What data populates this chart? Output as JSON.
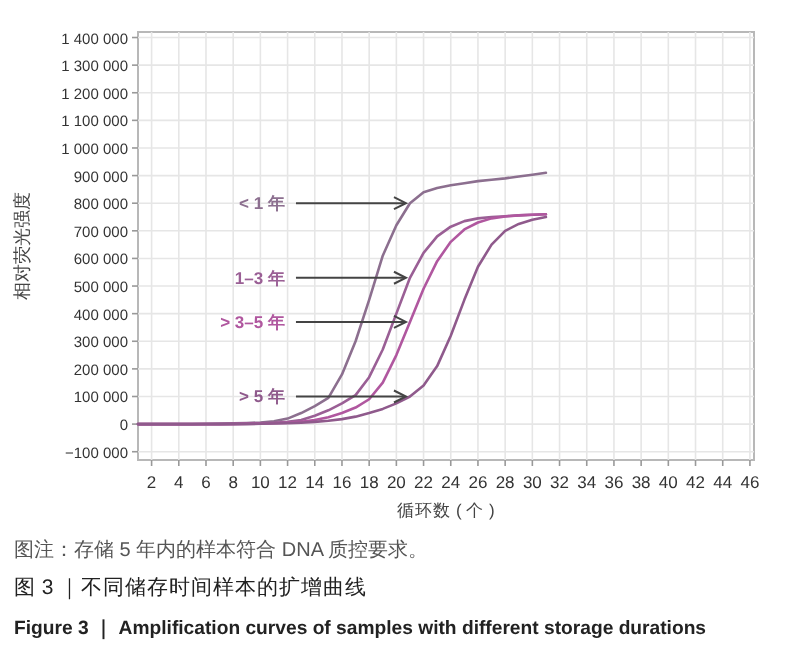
{
  "chart_data": {
    "type": "line",
    "title": "图 3 ｜不同储存时间样本的扩增曲线",
    "subtitle": "Figure 3 ｜ Amplification curves of samples with different storage durations",
    "xlabel": "循环数 ( 个 )",
    "ylabel": "相对荧光强度",
    "x": [
      1,
      2,
      3,
      4,
      5,
      6,
      7,
      8,
      9,
      10,
      11,
      12,
      13,
      14,
      15,
      16,
      17,
      18,
      19,
      20,
      21,
      22,
      23,
      24,
      25,
      26,
      27,
      28,
      29,
      30,
      31
    ],
    "series": [
      {
        "name": "< 1 年",
        "color": "#8c6f8f",
        "values": [
          0,
          0,
          0,
          0,
          0,
          1000,
          2000,
          3000,
          4000,
          6000,
          10000,
          20000,
          40000,
          65000,
          95000,
          180000,
          300000,
          450000,
          610000,
          720000,
          800000,
          840000,
          855000,
          865000,
          872000,
          880000,
          885000,
          890000,
          897000,
          903000,
          910000
        ]
      },
      {
        "name": "1–3 年",
        "color": "#9a5f95",
        "values": [
          0,
          0,
          0,
          0,
          0,
          0,
          0,
          1000,
          2000,
          3000,
          5000,
          8000,
          15000,
          30000,
          50000,
          75000,
          105000,
          170000,
          270000,
          400000,
          530000,
          620000,
          680000,
          715000,
          735000,
          745000,
          750000,
          753000,
          756000,
          758000,
          760000
        ]
      },
      {
        "name": "> 3–5 年",
        "color": "#b0579f",
        "values": [
          0,
          0,
          0,
          0,
          0,
          0,
          0,
          0,
          1000,
          2000,
          3000,
          5000,
          8000,
          15000,
          25000,
          40000,
          60000,
          90000,
          150000,
          250000,
          370000,
          490000,
          590000,
          660000,
          705000,
          730000,
          745000,
          752000,
          756000,
          758000,
          760000
        ]
      },
      {
        "name": "> 5 年",
        "color": "#8f5a8c",
        "values": [
          0,
          0,
          0,
          0,
          0,
          0,
          0,
          0,
          0,
          1000,
          2000,
          3000,
          5000,
          8000,
          12000,
          18000,
          27000,
          40000,
          55000,
          75000,
          100000,
          140000,
          210000,
          320000,
          450000,
          570000,
          650000,
          700000,
          725000,
          740000,
          750000
        ]
      }
    ],
    "annotations": [
      "图注：存储 5 年内的样本符合 DNA 质控要求。"
    ],
    "xlim": [
      1,
      46.3
    ],
    "ylim": [
      -130000,
      1420000
    ],
    "xticks": [
      2,
      4,
      6,
      8,
      10,
      12,
      14,
      16,
      18,
      20,
      22,
      24,
      26,
      28,
      30,
      32,
      34,
      36,
      38,
      40,
      42,
      44,
      46
    ],
    "yticks": [
      {
        "value": -100000,
        "label": "−100 000"
      },
      0,
      {
        "value": 100000,
        "label": "100 000"
      },
      {
        "value": 200000,
        "label": "200 000"
      },
      {
        "value": 300000,
        "label": "300 000"
      },
      {
        "value": 400000,
        "label": "400 000"
      },
      {
        "value": 500000,
        "label": "500 000"
      },
      {
        "value": 600000,
        "label": "600 000"
      },
      {
        "value": 700000,
        "label": "700 000"
      },
      {
        "value": 800000,
        "label": "800 000"
      },
      {
        "value": 900000,
        "label": "900 000"
      },
      {
        "value": 1000000,
        "label": "1 000 000"
      },
      {
        "value": 1100000,
        "label": "1 100 000"
      },
      {
        "value": 1200000,
        "label": "1 200 000"
      },
      {
        "value": 1300000,
        "label": "1 300 000"
      },
      {
        "value": 1400000,
        "label": "1 400 000"
      }
    ],
    "grid": true,
    "marker": "none",
    "line_style": "solid"
  }
}
